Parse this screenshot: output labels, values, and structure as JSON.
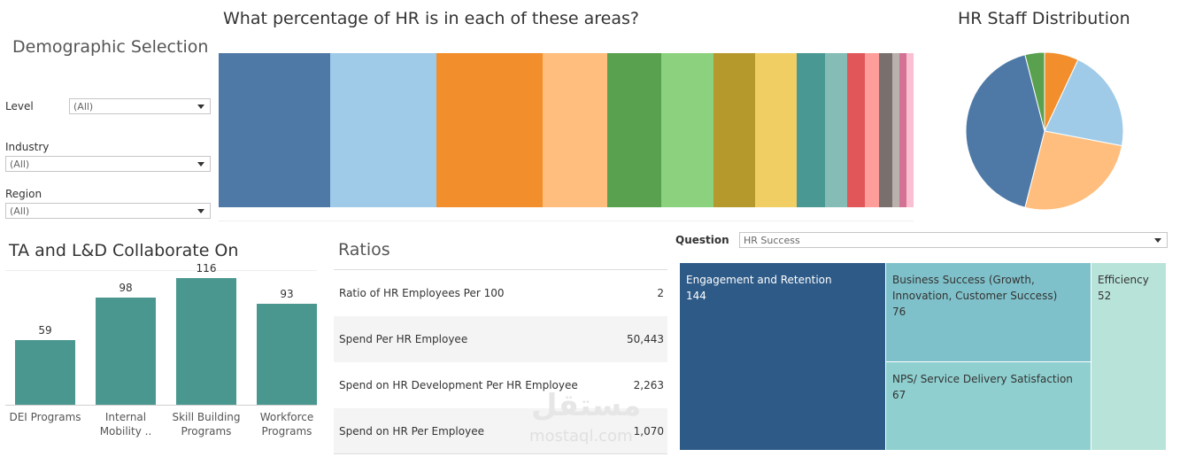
{
  "demographic": {
    "title": "Demographic Selection",
    "level_label": "Level",
    "level_value": "(All)",
    "industry_label": "Industry",
    "industry_value": "(All)",
    "region_label": "Region",
    "region_value": "(All)"
  },
  "stacked_title": "What percentage of HR is in each of these areas?",
  "pie_title": "HR Staff Distribution",
  "ta_ld": {
    "title": "TA and L&D Collaborate On"
  },
  "ratios": {
    "title": "Ratios",
    "rows": [
      {
        "label": "Ratio of HR Employees Per 100",
        "value": "2"
      },
      {
        "label": "Spend Per HR Employee",
        "value": "50,443"
      },
      {
        "label": "Spend on HR Development Per HR Employee",
        "value": "2,263"
      },
      {
        "label": "Spend on HR Per Employee",
        "value": "1,070"
      }
    ]
  },
  "question": {
    "label": "Question",
    "value": "HR Success"
  },
  "treemap": [
    {
      "label": "Engagement and Retention",
      "value": "144",
      "color": "#2e5a87"
    },
    {
      "label": "Business Success (Growth, Innovation, Customer Success)",
      "value": "76",
      "color": "#7fc1ca"
    },
    {
      "label": "NPS/ Service Delivery Satisfaction",
      "value": "67",
      "color": "#8fcfcf"
    },
    {
      "label": "Efficiency",
      "value": "52",
      "color": "#b8e3d8"
    }
  ],
  "watermark": {
    "arabic": "مستقل",
    "latin": "mostaql.com"
  },
  "chart_data": [
    {
      "type": "bar",
      "title": "What percentage of HR is in each of these areas?",
      "stacked": true,
      "series": [
        {
          "color": "#4e79a7",
          "values": [
            16
          ]
        },
        {
          "color": "#a0cbe8",
          "values": [
            15.3
          ]
        },
        {
          "color": "#f28e2b",
          "values": [
            15.3
          ]
        },
        {
          "color": "#ffbe7d",
          "values": [
            9.3
          ]
        },
        {
          "color": "#59a14f",
          "values": [
            7.8
          ]
        },
        {
          "color": "#8cd17d",
          "values": [
            7.5
          ]
        },
        {
          "color": "#b6992d",
          "values": [
            6.0
          ]
        },
        {
          "color": "#f1ce63",
          "values": [
            6.0
          ]
        },
        {
          "color": "#499894",
          "values": [
            4.1
          ]
        },
        {
          "color": "#86bcb6",
          "values": [
            3.2
          ]
        },
        {
          "color": "#e15759",
          "values": [
            2.5
          ]
        },
        {
          "color": "#ff9d9a",
          "values": [
            2.0
          ]
        },
        {
          "color": "#79706e",
          "values": [
            1.9
          ]
        },
        {
          "color": "#bab0ac",
          "values": [
            1.1
          ]
        },
        {
          "color": "#d37295",
          "values": [
            1.0
          ]
        },
        {
          "color": "#fabfd2",
          "values": [
            1.0
          ]
        }
      ]
    },
    {
      "type": "pie",
      "title": "HR Staff Distribution",
      "slices": [
        {
          "value": 7,
          "color": "#f28e2b"
        },
        {
          "value": 21,
          "color": "#a0cbe8"
        },
        {
          "value": 26,
          "color": "#ffbe7d"
        },
        {
          "value": 42,
          "color": "#4e79a7"
        },
        {
          "value": 4,
          "color": "#59a14f"
        }
      ]
    },
    {
      "type": "bar",
      "title": "TA and L&D Collaborate On",
      "categories": [
        "DEI Programs",
        "Internal Mobility ..",
        "Skill Building Programs",
        "Workforce Programs"
      ],
      "values": [
        59,
        98,
        116,
        93
      ],
      "ylim": [
        0,
        130
      ],
      "color": "#4a9790"
    }
  ]
}
